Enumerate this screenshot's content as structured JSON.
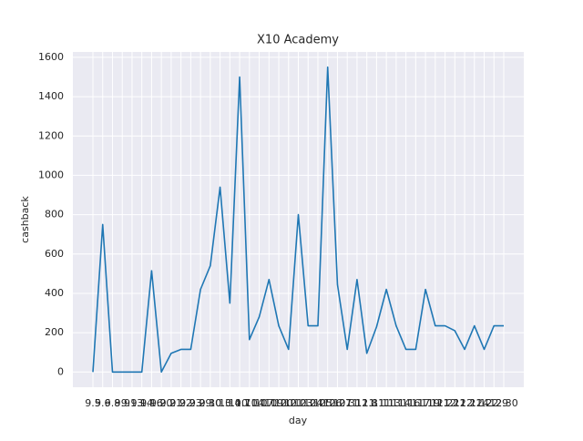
{
  "chart_data": {
    "type": "line",
    "title": "X10 Academy",
    "xlabel": "day",
    "ylabel": "cashback",
    "categories": [
      "9.5",
      "9.6",
      "9.8",
      "9.9",
      "9.13",
      "9.14",
      "9.16",
      "9.20",
      "9.21",
      "9.22",
      "9.23",
      "9.29",
      "9.30",
      "10.3",
      "10.4",
      "10.7",
      "10.14",
      "10.17",
      "10.19",
      "10.20",
      "10.21",
      "10.23",
      "10.24",
      "10.25",
      "10.26",
      "10.27",
      "10.31",
      "11.2",
      "11.8",
      "11.11",
      "11.13",
      "11.14",
      "11.16",
      "11.17",
      "11.19",
      "11.21",
      "11.22",
      "12.1",
      "12.2",
      "12.14",
      "12.22",
      "12.29",
      "12.30"
    ],
    "series": [
      {
        "name": "cashback",
        "color": "#1f77b4",
        "values": [
          0,
          750,
          0,
          0,
          0,
          0,
          515,
          0,
          95,
          115,
          115,
          420,
          540,
          940,
          350,
          1500,
          165,
          280,
          470,
          235,
          115,
          800,
          235,
          235,
          1550,
          445,
          115,
          470,
          95,
          230,
          420,
          235,
          115,
          115,
          420,
          235,
          235,
          210,
          115,
          235,
          115,
          235,
          235
        ]
      }
    ],
    "ylim": [
      -77.5,
      1627.5
    ],
    "yticks": [
      0,
      200,
      400,
      600,
      800,
      1000,
      1200,
      1400,
      1600
    ],
    "grid": true
  }
}
